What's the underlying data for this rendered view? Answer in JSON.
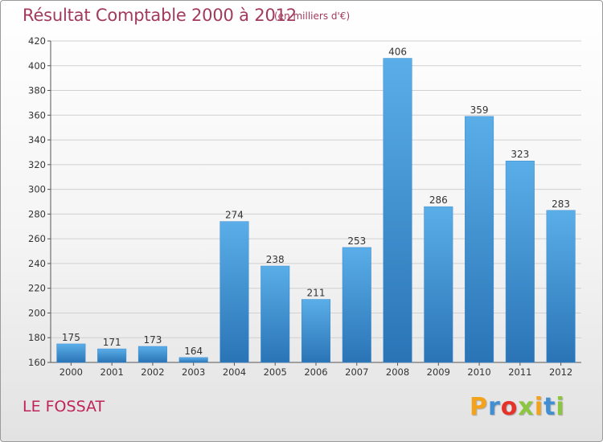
{
  "header": {
    "title": "Résultat Comptable 2000 à 2012",
    "subtitle": "(en milliers d'€)"
  },
  "footer": {
    "commune": "LE FOSSAT",
    "logo": {
      "letters": [
        "P",
        "r",
        "o",
        "x",
        "i",
        "t",
        "i"
      ],
      "colors": [
        "#f2a31b",
        "#3f8fd2",
        "#e5332a",
        "#8cc63e",
        "#f2a31b",
        "#3f8fd2",
        "#8cc63e"
      ]
    }
  },
  "chart_data": {
    "type": "bar",
    "categories": [
      "2000",
      "2001",
      "2002",
      "2003",
      "2004",
      "2005",
      "2006",
      "2007",
      "2008",
      "2009",
      "2010",
      "2011",
      "2012"
    ],
    "values": [
      175,
      171,
      173,
      164,
      274,
      238,
      211,
      253,
      406,
      286,
      359,
      323,
      283
    ],
    "value_labels": [
      "175",
      "171",
      "173",
      "164",
      "274",
      "238",
      "211",
      "253",
      "406",
      "286",
      "359",
      "323",
      "283"
    ],
    "title": "Résultat Comptable 2000 à 2012",
    "ylim": [
      160,
      420
    ],
    "yticks": [
      "160",
      "180",
      "200",
      "220",
      "240",
      "260",
      "280",
      "300",
      "320",
      "340",
      "360",
      "380",
      "400",
      "420"
    ],
    "grid": true,
    "bar_color_top": "#5aaee8",
    "bar_color_bottom": "#2a74b6"
  }
}
